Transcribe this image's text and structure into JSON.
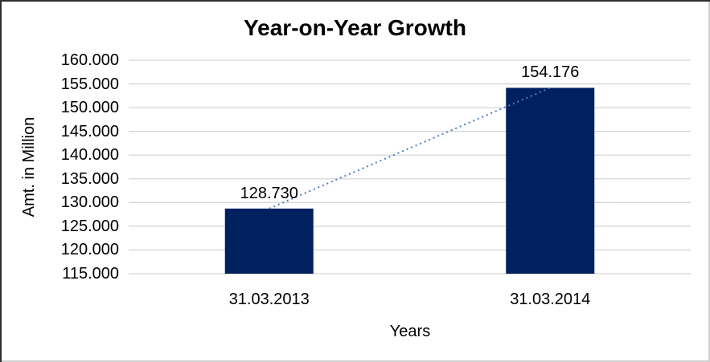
{
  "chart_data": {
    "type": "bar",
    "title": "Year-on-Year Growth",
    "xlabel": "Years",
    "ylabel": "Amt. in Million",
    "categories": [
      "31.03.2013",
      "31.03.2014"
    ],
    "values": [
      128.73,
      154.176
    ],
    "value_labels": [
      "128.730",
      "154.176"
    ],
    "ylim": [
      115,
      160
    ],
    "ytick_step": 5,
    "ytick_labels": [
      "160.000",
      "155.000",
      "150.000",
      "145.000",
      "140.000",
      "135.000",
      "130.000",
      "125.000",
      "120.000",
      "115.000"
    ],
    "grid": true,
    "legend": false,
    "trendline": {
      "style": "dotted",
      "color": "#4A80C4"
    },
    "colors": {
      "bar": "#002060",
      "grid": "#D6D6D6",
      "text": "#000000",
      "background": "#FFFFFF"
    }
  }
}
